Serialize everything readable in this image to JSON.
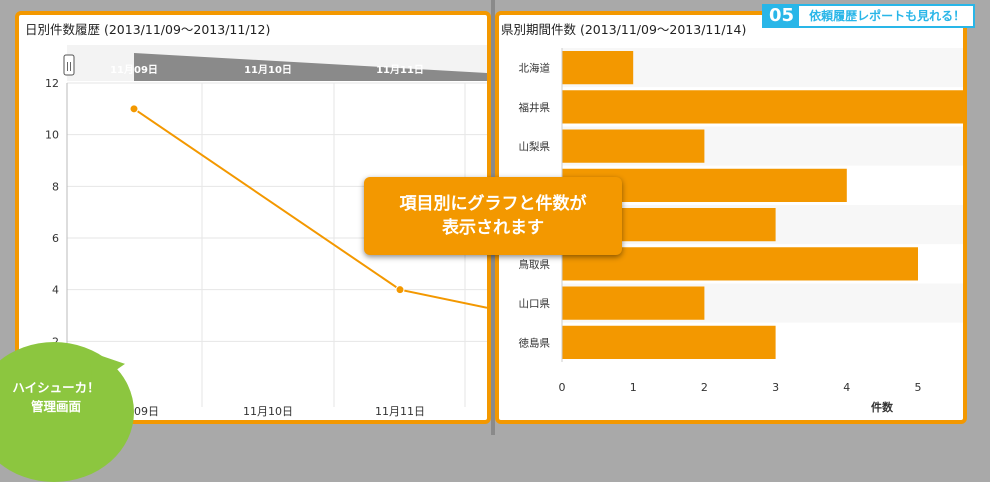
{
  "left_chart": {
    "title": "日別件数履歴 (2013/11/09〜2013/11/12)",
    "nav_handle": "||",
    "nav_labels": [
      "11月09日",
      "11月10日",
      "11月11日"
    ],
    "chart_data": {
      "type": "line",
      "x": [
        "11月09日",
        "11月10日",
        "11月11日"
      ],
      "series": [
        {
          "values": [
            11,
            4,
            3.3
          ]
        }
      ],
      "ylim": [
        0,
        12
      ],
      "yticks": [
        "2",
        "4",
        "6",
        "8",
        "10",
        "12"
      ],
      "color": "#f39800",
      "grid": true
    }
  },
  "right_chart": {
    "title": "県別期間件数 (2013/11/09〜2013/11/14)",
    "chart_data": {
      "type": "bar",
      "orientation": "horizontal",
      "categories": [
        "北海道",
        "福井県",
        "山梨県",
        "",
        "",
        "鳥取県",
        "山口県",
        "徳島県"
      ],
      "values": [
        1,
        6,
        2,
        4,
        3,
        5,
        2,
        3
      ],
      "xlim": [
        0,
        6
      ],
      "xticks": [
        "0",
        "1",
        "2",
        "3",
        "4",
        "5",
        "6"
      ],
      "xlabel": "件数",
      "color": "#f39800"
    }
  },
  "callout": {
    "line1": "項目別にグラフと件数が",
    "line2": "表示されます"
  },
  "badge": {
    "number": "05",
    "text": "依頼履歴レポートも見れる！"
  },
  "corner_badge": {
    "line1": "ハイシューカ！",
    "line2": "管理画面"
  }
}
